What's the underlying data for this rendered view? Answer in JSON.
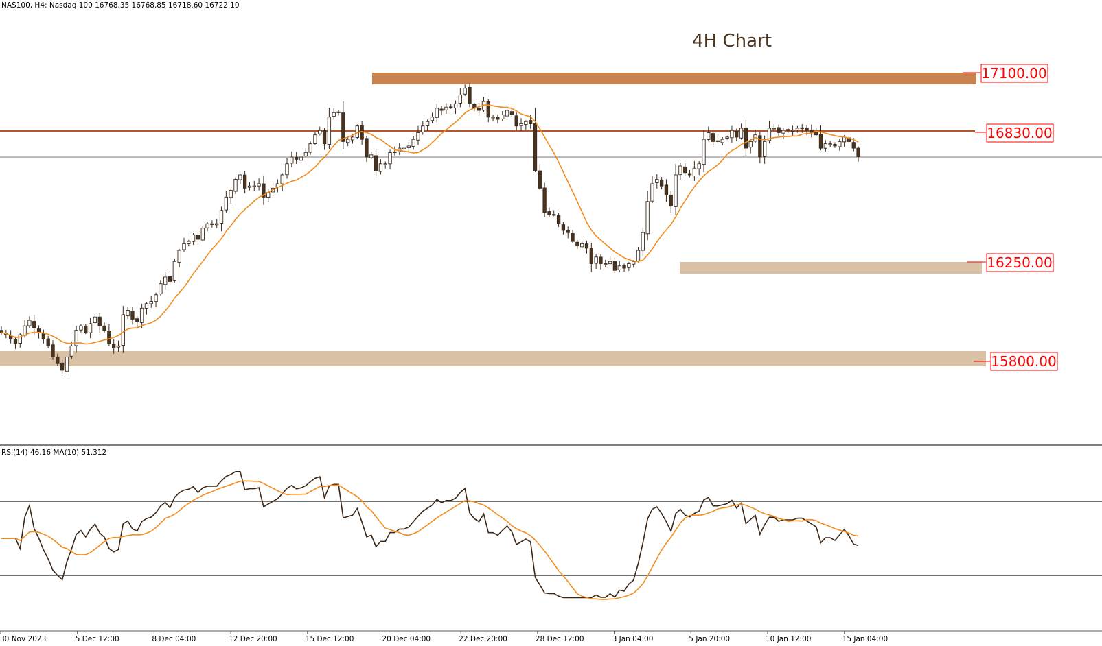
{
  "header": {
    "symbol_line": "NAS100, H4:  Nasdaq 100  16768.35 16768.85 16718.60 16722.10",
    "title": "4H Chart"
  },
  "indicator": {
    "label": "RSI(14) 46.16 MA(10) 51.312"
  },
  "colors": {
    "background": "#ffffff",
    "resistance_zone": "#c9834f",
    "support_zone": "#d9c1a5",
    "line_16830": "#b5572a",
    "price_line": "#7a7a7a",
    "candle_edge": "#3a2a1c",
    "bull_fill": "#ffffff",
    "bear_fill": "#4a3420",
    "ma_line": "#f28c1c",
    "rsi_line": "#3b2616",
    "level_label_text": "#ff0000"
  },
  "chart_data": [
    {
      "type": "candlestick",
      "title": "4H Chart",
      "symbol": "NAS100, H4: Nasdaq 100",
      "ohlc_header": {
        "open": 16768.35,
        "high": 16768.85,
        "low": 16718.6,
        "close": 16722.1
      },
      "x_tick_labels": [
        "30 Nov 2023",
        "5 Dec 12:00",
        "8 Dec 04:00",
        "12 Dec 20:00",
        "15 Dec 12:00",
        "20 Dec 04:00",
        "22 Dec 20:00",
        "28 Dec 12:00",
        "3 Jan 04:00",
        "5 Jan 20:00",
        "10 Jan 12:00",
        "15 Jan 04:00"
      ],
      "levels": [
        {
          "label": "17100.00",
          "value": 17100,
          "style": "zone"
        },
        {
          "label": "16830.00",
          "value": 16830,
          "style": "line"
        },
        {
          "label": "16250.00",
          "value": 16250,
          "style": "zone"
        },
        {
          "label": "15800.00",
          "value": 15800,
          "style": "zone"
        }
      ],
      "current_price": 16722.1,
      "series": [
        {
          "name": "MA",
          "closes": [
            15930,
            15920,
            15900,
            15880,
            15920,
            15960,
            15985,
            15950,
            15930,
            15900,
            15870,
            15820,
            15790,
            15760,
            15820,
            15870,
            15940,
            15960,
            15930,
            15970,
            16000,
            15960,
            15940,
            15880,
            15860,
            15870,
            16010,
            16030,
            15990,
            15980,
            16040,
            16060,
            16070,
            16100,
            16150,
            16180,
            16160,
            16250,
            16300,
            16330,
            16340,
            16370,
            16350,
            16400,
            16420,
            16420,
            16420,
            16480,
            16540,
            16570,
            16620,
            16640,
            16580,
            16590,
            16590,
            16600,
            16540,
            16560,
            16580,
            16600,
            16640,
            16690,
            16720,
            16710,
            16720,
            16740,
            16780,
            16820,
            16840,
            16780,
            16900,
            16920,
            16920,
            16790,
            16800,
            16810,
            16860,
            16800,
            16720,
            16730,
            16660,
            16690,
            16690,
            16740,
            16740,
            16760,
            16760,
            16770,
            16800,
            16830,
            16860,
            16880,
            16900,
            16940,
            16930,
            16945,
            16945,
            16960,
            17000,
            17030,
            16960,
            16940,
            16930,
            16970,
            16900,
            16900,
            16890,
            16910,
            16930,
            16910,
            16860,
            16870,
            16880,
            16870,
            16660,
            16580,
            16470,
            16460,
            16460,
            16420,
            16390,
            16380,
            16340,
            16320,
            16330,
            16310,
            16240,
            16270,
            16240,
            16240,
            16250,
            16210,
            16230,
            16220,
            16240,
            16250,
            16300,
            16380,
            16520,
            16600,
            16620,
            16590,
            16550,
            16500,
            16640,
            16680,
            16650,
            16640,
            16670,
            16690,
            16800,
            16830,
            16790,
            16790,
            16800,
            16810,
            16840,
            16810,
            16850,
            16760,
            16790,
            16820,
            16720,
            16790,
            16850,
            16850,
            16830,
            16840,
            16840,
            16840,
            16850,
            16850,
            16840,
            16830,
            16820,
            16760,
            16780,
            16780,
            16770,
            16790,
            16810,
            16790,
            16760,
            16722
          ]
        }
      ]
    },
    {
      "type": "line",
      "title": "RSI(14) 46.16 MA(10) 51.312",
      "rsi_last": 46.16,
      "ma_last": 51.312,
      "reference_levels": [
        70,
        30
      ],
      "ylim": [
        20,
        80
      ]
    }
  ]
}
